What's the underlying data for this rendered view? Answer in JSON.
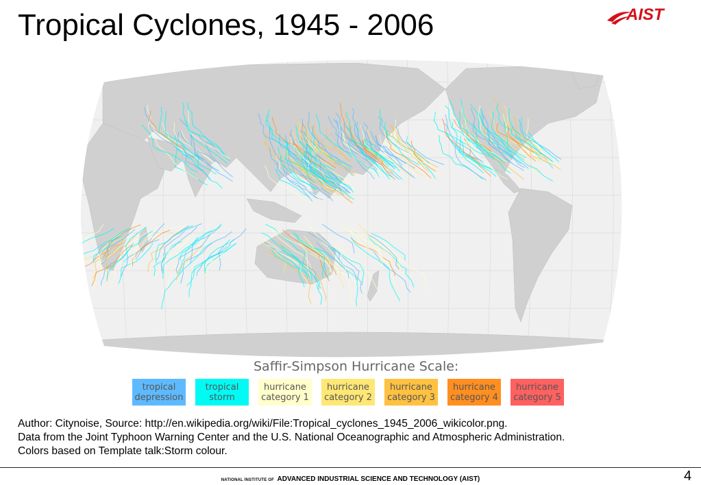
{
  "title": "Tropical Cyclones, 1945 - 2006",
  "logo": {
    "text": "AIST",
    "color": "#d3121b"
  },
  "scale": {
    "title": "Saffir-Simpson Hurricane Scale:",
    "categories": [
      {
        "label": "tropical\ndepression",
        "color": "#5ebaff"
      },
      {
        "label": "tropical\nstorm",
        "color": "#00faf4"
      },
      {
        "label": "hurricane\ncategory 1",
        "color": "#ffffcc"
      },
      {
        "label": "hurricane\ncategory 2",
        "color": "#ffe775"
      },
      {
        "label": "hurricane\ncategory 3",
        "color": "#ffc140"
      },
      {
        "label": "hurricane\ncategory 4",
        "color": "#ff8f20"
      },
      {
        "label": "hurricane\ncategory 5",
        "color": "#ff6060"
      }
    ]
  },
  "caption": {
    "line1": "Author: Citynoise, Source: http://en.wikipedia.org/wiki/File:Tropical_cyclones_1945_2006_wikicolor.png.",
    "line2": "Data from the Joint Typhoon Warning Center and the U.S. National Oceanographic and Atmospheric Administration.",
    "line3": "Colors based on Template talk:Storm colour."
  },
  "footer": {
    "prefix": "NATIONAL INSTITUTE OF",
    "name": "ADVANCED INDUSTRIAL SCIENCE AND TECHNOLOGY (AIST)"
  },
  "page_number": "4",
  "map": {
    "land_color": "#cfcfcf",
    "ocean_color": "#ffffff"
  }
}
